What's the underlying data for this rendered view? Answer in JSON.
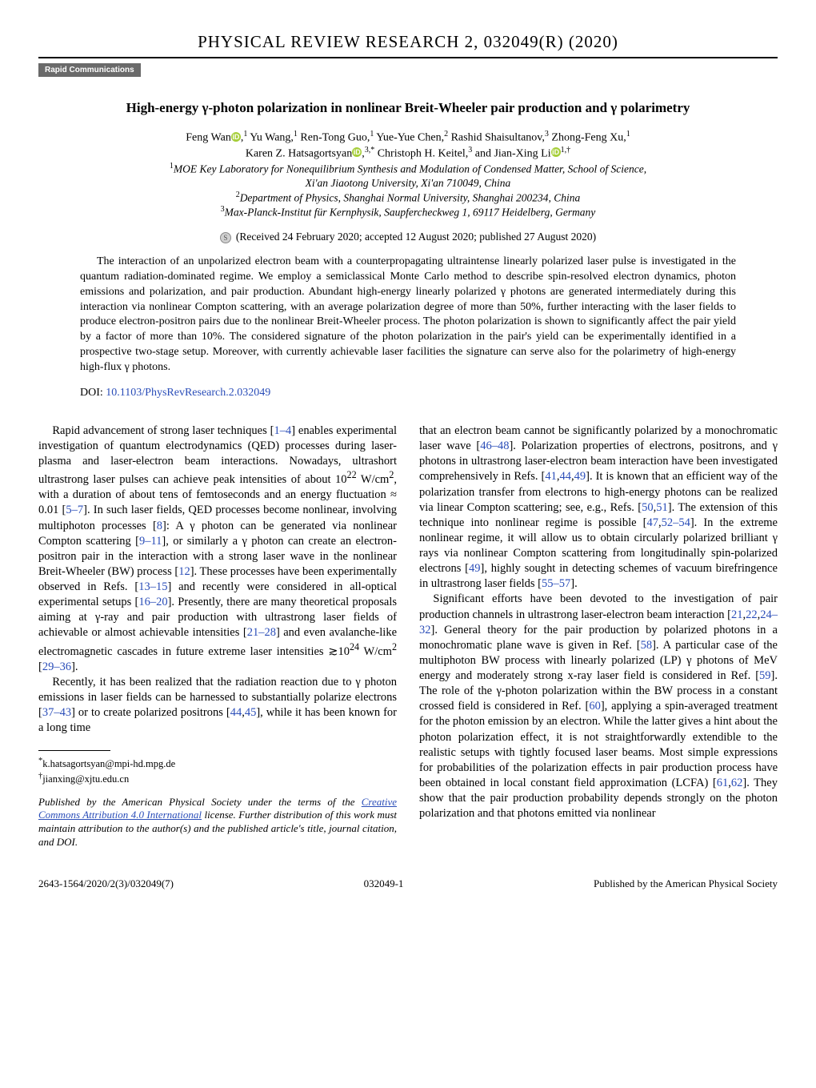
{
  "journal_header": "PHYSICAL REVIEW RESEARCH 2, 032049(R) (2020)",
  "badge": "Rapid Communications",
  "title": "High-energy γ-photon polarization in nonlinear Breit-Wheeler pair production and γ polarimetry",
  "authors_line1_pre": "Feng Wan",
  "authors_line1_post1": " Yu Wang,",
  "authors_line1_post2": " Ren-Tong Guo,",
  "authors_line1_post3": " Yue-Yue Chen,",
  "authors_line1_post4": " Rashid Shaisultanov,",
  "authors_line1_post5": " Zhong-Feng Xu,",
  "authors_line2_name1": "Karen Z. Hatsagortsyan",
  "authors_line2_name2": " Christoph H. Keitel,",
  "authors_line2_name3": " and Jian-Xing Li",
  "sup_1": "1",
  "sup_2": "2",
  "sup_3": "3",
  "sup_3star": "3,*",
  "sup_1dag": "1,†",
  "affil1_pre": "1",
  "affil1": "MOE Key Laboratory for Nonequilibrium Synthesis and Modulation of Condensed Matter, School of Science,",
  "affil1b": "Xi'an Jiaotong University, Xi'an 710049, China",
  "affil2_pre": "2",
  "affil2": "Department of Physics, Shanghai Normal University, Shanghai 200234, China",
  "affil3_pre": "3",
  "affil3": "Max-Planck-Institut für Kernphysik, Saupfercheckweg 1, 69117 Heidelberg, Germany",
  "received": "(Received 24 February 2020; accepted 12 August 2020; published 27 August 2020)",
  "abstract": "The interaction of an unpolarized electron beam with a counterpropagating ultraintense linearly polarized laser pulse is investigated in the quantum radiation-dominated regime. We employ a semiclassical Monte Carlo method to describe spin-resolved electron dynamics, photon emissions and polarization, and pair production. Abundant high-energy linearly polarized γ photons are generated intermediately during this interaction via nonlinear Compton scattering, with an average polarization degree of more than 50%, further interacting with the laser fields to produce electron-positron pairs due to the nonlinear Breit-Wheeler process. The photon polarization is shown to significantly affect the pair yield by a factor of more than 10%. The considered signature of the photon polarization in the pair's yield can be experimentally identified in a prospective two-stage setup. Moreover, with currently achievable laser facilities the signature can serve also for the polarimetry of high-energy high-flux γ photons.",
  "doi_label": "DOI: ",
  "doi_link_text": "10.1103/PhysRevResearch.2.032049",
  "left_p1_a": "Rapid advancement of strong laser techniques [",
  "left_p1_r1": "1–4",
  "left_p1_b": "] enables experimental investigation of quantum electrodynamics (QED) processes during laser-plasma and laser-electron beam interactions. Nowadays, ultrashort ultrastrong laser pulses can achieve peak intensities of about 10",
  "left_p1_exp22": "22",
  "left_p1_c": " W/cm",
  "left_p1_exp2": "2",
  "left_p1_d": ", with a duration of about tens of femtoseconds and an energy fluctuation ≈ 0.01 [",
  "left_p1_r2": "5–7",
  "left_p1_e": "]. In such laser fields, QED processes become nonlinear, involving multiphoton processes [",
  "left_p1_r3": "8",
  "left_p1_f": "]: A γ photon can be generated via nonlinear Compton scattering [",
  "left_p1_r4": "9–11",
  "left_p1_g": "], or similarly a γ photon can create an electron-positron pair in the interaction with a strong laser wave in the nonlinear Breit-Wheeler (BW) process [",
  "left_p1_r5": "12",
  "left_p1_h": "]. These processes have been experimentally observed in Refs. [",
  "left_p1_r6": "13–15",
  "left_p1_i": "] and recently were considered in all-optical experimental setups [",
  "left_p1_r7": "16–20",
  "left_p1_j": "]. Presently, there are many theoretical proposals aiming at γ-ray and pair production with ultrastrong laser fields of achievable or almost achievable intensities [",
  "left_p1_r8": "21–28",
  "left_p1_k": "] and even avalanche-like electromagnetic cascades in future extreme laser intensities ≳10",
  "left_p1_exp24": "24",
  "left_p1_l": " W/cm",
  "left_p1_m": " [",
  "left_p1_r9": "29–36",
  "left_p1_n": "].",
  "left_p2_a": "Recently, it has been realized that the radiation reaction due to γ photon emissions in laser fields can be harnessed to substantially polarize electrons [",
  "left_p2_r1": "37–43",
  "left_p2_b": "] or to create polarized positrons [",
  "left_p2_r2": "44",
  "left_p2_c": ",",
  "left_p2_r3": "45",
  "left_p2_d": "], while it has been known for a long time",
  "fn1_sym": "*",
  "fn1": "k.hatsagortsyan@mpi-hd.mpg.de",
  "fn2_sym": "†",
  "fn2": "jianxing@xjtu.edu.cn",
  "license_a": "Published by the American Physical Society under the terms of the ",
  "license_link": "Creative Commons Attribution 4.0 International",
  "license_b": " license. Further distribution of this work must maintain attribution to the author(s) and the published article's title, journal citation, and DOI.",
  "right_p1_a": "that an electron beam cannot be significantly polarized by a monochromatic laser wave [",
  "right_p1_r1": "46–48",
  "right_p1_b": "]. Polarization properties of electrons, positrons, and γ photons in ultrastrong laser-electron beam interaction have been investigated comprehensively in Refs. [",
  "right_p1_r2": "41",
  "right_p1_c": ",",
  "right_p1_r3": "44",
  "right_p1_d": ",",
  "right_p1_r4": "49",
  "right_p1_e": "]. It is known that an efficient way of the polarization transfer from electrons to high-energy photons can be realized via linear Compton scattering; see, e.g., Refs. [",
  "right_p1_r5": "50",
  "right_p1_f": ",",
  "right_p1_r6": "51",
  "right_p1_g": "]. The extension of this technique into nonlinear regime is possible [",
  "right_p1_r7": "47",
  "right_p1_h": ",",
  "right_p1_r8": "52–54",
  "right_p1_i": "]. In the extreme nonlinear regime, it will allow us to obtain circularly polarized brilliant γ rays via nonlinear Compton scattering from longitudinally spin-polarized electrons [",
  "right_p1_r9": "49",
  "right_p1_j": "], highly sought in detecting schemes of vacuum birefringence in ultrastrong laser fields [",
  "right_p1_r10": "55–57",
  "right_p1_k": "].",
  "right_p2_a": "Significant efforts have been devoted to the investigation of pair production channels in ultrastrong laser-electron beam interaction [",
  "right_p2_r1": "21",
  "right_p2_b": ",",
  "right_p2_r2": "22",
  "right_p2_c": ",",
  "right_p2_r3": "24–32",
  "right_p2_d": "]. General theory for the pair production by polarized photons in a monochromatic plane wave is given in Ref. [",
  "right_p2_r4": "58",
  "right_p2_e": "]. A particular case of the multiphoton BW process with linearly polarized (LP) γ photons of MeV energy and moderately strong x-ray laser field is considered in Ref. [",
  "right_p2_r5": "59",
  "right_p2_f": "]. The role of the γ-photon polarization within the BW process in a constant crossed field is considered in Ref. [",
  "right_p2_r6": "60",
  "right_p2_g": "], applying a spin-averaged treatment for the photon emission by an electron. While the latter gives a hint about the photon polarization effect, it is not straightforwardly extendible to the realistic setups with tightly focused laser beams. Most simple expressions for probabilities of the polarization effects in pair production process have been obtained in local constant field approximation (LCFA) [",
  "right_p2_r7": "61",
  "right_p2_h": ",",
  "right_p2_r8": "62",
  "right_p2_i": "]. They show that the pair production probability depends strongly on the photon polarization and that photons emitted via nonlinear",
  "footer_left": "2643-1564/2020/2(3)/032049(7)",
  "footer_center": "032049-1",
  "footer_right": "Published by the American Physical Society",
  "colors": {
    "link": "#2a4db8",
    "badge_bg": "#6a6a6a",
    "orcid": "#a6ce39"
  },
  "typography": {
    "body_fontsize_pt": 11,
    "title_fontsize_pt": 13,
    "header_fontsize_pt": 16
  }
}
